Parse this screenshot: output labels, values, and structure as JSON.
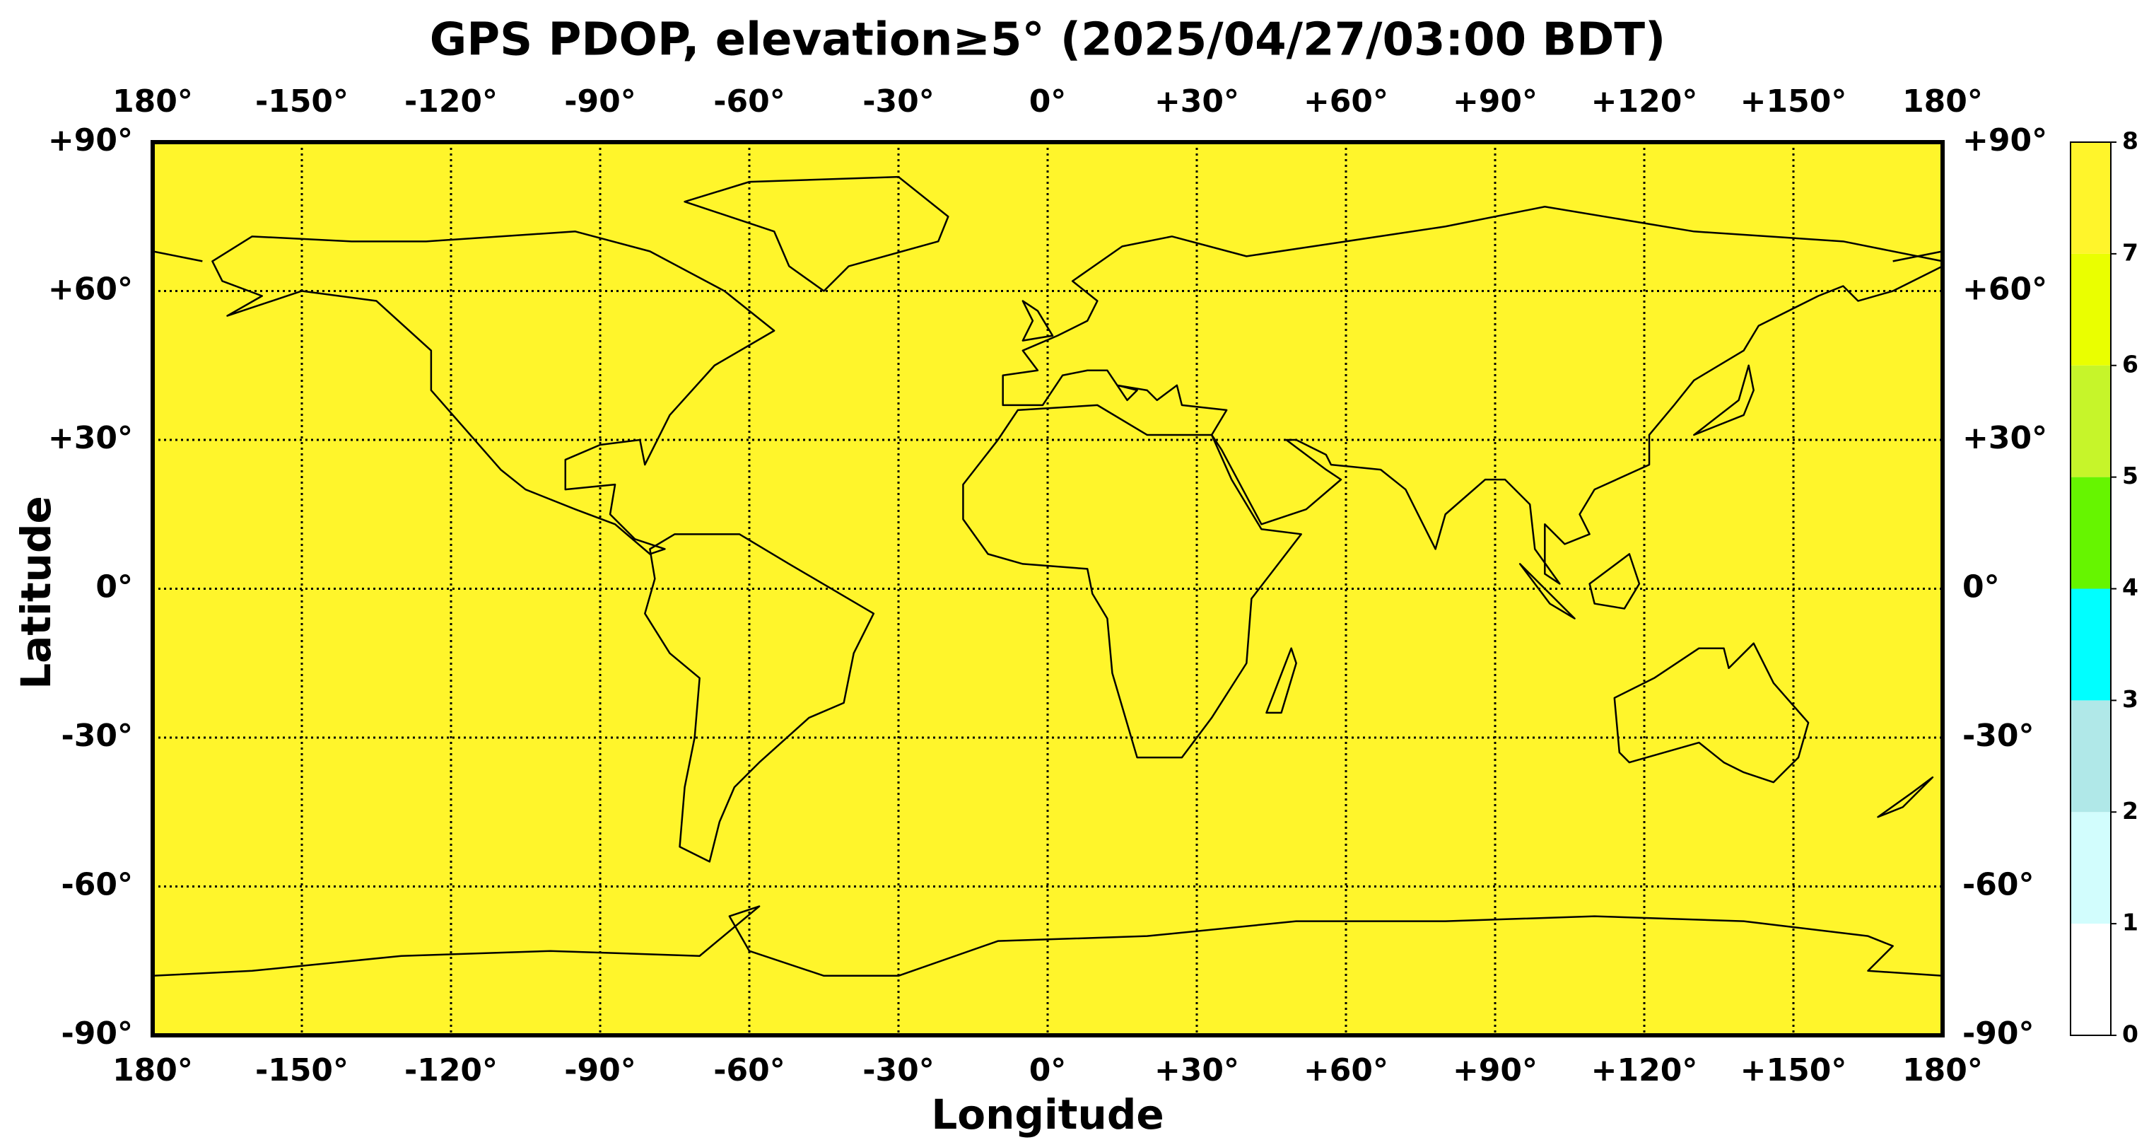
{
  "title": "GPS PDOP, elevation≥5° (2025/04/27/03:00 BDT)",
  "xlabel": "Longitude",
  "ylabel": "Latitude",
  "xlim": [
    -180,
    180
  ],
  "ylim": [
    -90,
    90
  ],
  "xticks": [
    {
      "value": -180,
      "label": "180°"
    },
    {
      "value": -150,
      "label": "-150°"
    },
    {
      "value": -120,
      "label": "-120°"
    },
    {
      "value": -90,
      "label": "-90°"
    },
    {
      "value": -60,
      "label": "-60°"
    },
    {
      "value": -30,
      "label": "-30°"
    },
    {
      "value": 0,
      "label": "0°"
    },
    {
      "value": 30,
      "label": "+30°"
    },
    {
      "value": 60,
      "label": "+60°"
    },
    {
      "value": 90,
      "label": "+90°"
    },
    {
      "value": 120,
      "label": "+120°"
    },
    {
      "value": 150,
      "label": "+150°"
    },
    {
      "value": 180,
      "label": "180°"
    }
  ],
  "yticks": [
    {
      "value": -90,
      "label": "-90°"
    },
    {
      "value": -60,
      "label": "-60°"
    },
    {
      "value": -30,
      "label": "-30°"
    },
    {
      "value": 0,
      "label": "0°"
    },
    {
      "value": 30,
      "label": "+30°"
    },
    {
      "value": 60,
      "label": "+60°"
    },
    {
      "value": 90,
      "label": "+90°"
    }
  ],
  "grid": true,
  "field_color": "#fff52b",
  "colorbar": {
    "ticks": [
      0,
      1,
      2,
      3,
      4,
      5,
      6,
      7,
      8
    ],
    "colors": [
      "#ffffff",
      "#d2fdfd",
      "#b0e8e8",
      "#00ffff",
      "#66f500",
      "#c6f52a",
      "#eaff00",
      "#fff52b"
    ]
  }
}
